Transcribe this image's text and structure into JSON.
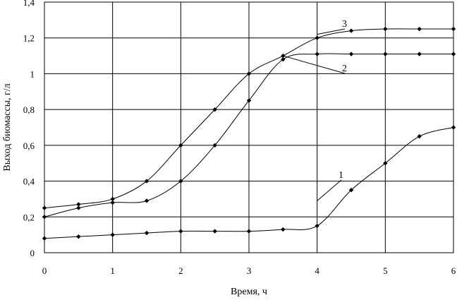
{
  "chart_data": {
    "type": "line",
    "xlabel": "Время, ч",
    "ylabel": "Выход биомассы, г/л",
    "xlim": [
      0,
      6
    ],
    "ylim": [
      0,
      1.4
    ],
    "x_ticks": [
      "0",
      "1",
      "2",
      "3",
      "4",
      "5",
      "6"
    ],
    "y_ticks": [
      "0",
      "0,2",
      "0,4",
      "0,6",
      "0,8",
      "1",
      "1,2",
      "1,4"
    ],
    "grid": true,
    "series": [
      {
        "name": "1",
        "x": [
          0,
          0.5,
          1,
          1.5,
          2,
          2.5,
          3,
          3.5,
          4,
          4.5,
          5,
          5.5,
          6
        ],
        "values": [
          0.08,
          0.09,
          0.1,
          0.11,
          0.12,
          0.12,
          0.12,
          0.13,
          0.15,
          0.35,
          0.5,
          0.65,
          0.7
        ]
      },
      {
        "name": "2",
        "x": [
          0,
          0.5,
          1,
          1.5,
          2,
          2.5,
          3,
          3.5,
          4,
          4.5,
          5,
          5.5,
          6
        ],
        "values": [
          0.2,
          0.25,
          0.28,
          0.29,
          0.4,
          0.6,
          0.85,
          1.08,
          1.11,
          1.11,
          1.11,
          1.11,
          1.11
        ]
      },
      {
        "name": "3",
        "x": [
          0,
          0.5,
          1,
          1.5,
          2,
          2.5,
          3,
          3.5,
          4,
          4.5,
          5,
          5.5,
          6
        ],
        "values": [
          0.25,
          0.27,
          0.3,
          0.4,
          0.6,
          0.8,
          1.0,
          1.1,
          1.2,
          1.24,
          1.25,
          1.25,
          1.25
        ]
      }
    ],
    "marker_color": "#000000",
    "line_color": "#000000",
    "grid_color": "#000000"
  }
}
